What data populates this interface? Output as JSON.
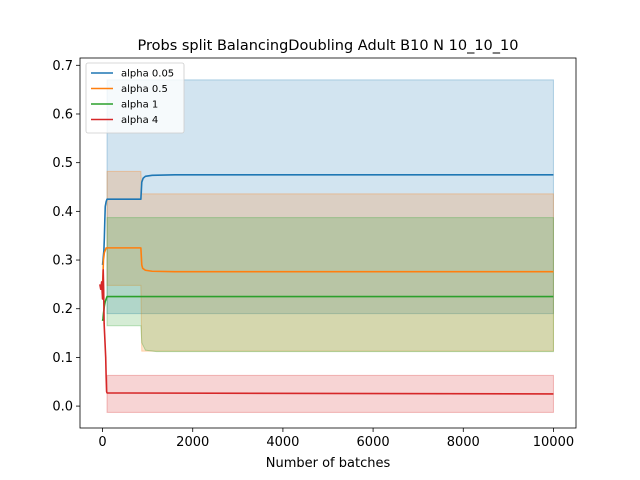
{
  "chart_data": {
    "type": "line",
    "title": "Probs split BalancingDoubling Adult B10 N 10_10_10",
    "xlabel": "Number of batches",
    "ylabel": "",
    "xlim": [
      -500,
      10500
    ],
    "ylim": [
      -0.045,
      0.715
    ],
    "xticks": [
      0,
      2000,
      4000,
      6000,
      8000,
      10000
    ],
    "xtick_labels": [
      "0",
      "2000",
      "4000",
      "6000",
      "8000",
      "10000"
    ],
    "yticks": [
      0.0,
      0.1,
      0.2,
      0.3,
      0.4,
      0.5,
      0.6,
      0.7
    ],
    "ytick_labels": [
      "0.0",
      "0.1",
      "0.2",
      "0.3",
      "0.4",
      "0.5",
      "0.6",
      "0.7"
    ],
    "grid": false,
    "legend_position": "top-left",
    "series": [
      {
        "name": "alpha 0.05",
        "color": "#1f77b4",
        "line": [
          [
            0,
            0.29
          ],
          [
            10,
            0.3
          ],
          [
            20,
            0.31
          ],
          [
            30,
            0.32
          ],
          [
            40,
            0.345
          ],
          [
            50,
            0.38
          ],
          [
            60,
            0.41
          ],
          [
            80,
            0.42
          ],
          [
            100,
            0.425
          ],
          [
            850,
            0.425
          ],
          [
            870,
            0.46
          ],
          [
            900,
            0.468
          ],
          [
            950,
            0.472
          ],
          [
            1100,
            0.474
          ],
          [
            1600,
            0.475
          ],
          [
            10000,
            0.475
          ]
        ],
        "band": [
          [
            100,
            0.19,
            0.67
          ],
          [
            10000,
            0.19,
            0.67
          ]
        ]
      },
      {
        "name": "alpha 0.5",
        "color": "#ff7f0e",
        "line": [
          [
            0,
            0.25
          ],
          [
            10,
            0.27
          ],
          [
            20,
            0.3
          ],
          [
            40,
            0.315
          ],
          [
            60,
            0.32
          ],
          [
            80,
            0.325
          ],
          [
            850,
            0.325
          ],
          [
            870,
            0.29
          ],
          [
            890,
            0.283
          ],
          [
            950,
            0.279
          ],
          [
            1100,
            0.277
          ],
          [
            1600,
            0.276
          ],
          [
            10000,
            0.276
          ]
        ],
        "band": [
          [
            100,
            0.248,
            0.482
          ],
          [
            850,
            0.248,
            0.482
          ],
          [
            870,
            0.113,
            0.436
          ],
          [
            10000,
            0.113,
            0.436
          ]
        ]
      },
      {
        "name": "alpha 1",
        "color": "#2ca02c",
        "line": [
          [
            0,
            0.175
          ],
          [
            10,
            0.18
          ],
          [
            20,
            0.19
          ],
          [
            40,
            0.205
          ],
          [
            60,
            0.215
          ],
          [
            80,
            0.22
          ],
          [
            100,
            0.225
          ],
          [
            10000,
            0.225
          ]
        ],
        "band": [
          [
            100,
            0.165,
            0.387
          ],
          [
            850,
            0.165,
            0.387
          ],
          [
            870,
            0.13,
            0.387
          ],
          [
            950,
            0.115,
            0.387
          ],
          [
            1200,
            0.112,
            0.387
          ],
          [
            10000,
            0.112,
            0.387
          ]
        ]
      },
      {
        "name": "alpha 4",
        "color": "#d62728",
        "line": [
          [
            -60,
            0.25
          ],
          [
            -40,
            0.24
          ],
          [
            -20,
            0.255
          ],
          [
            0,
            0.22
          ],
          [
            15,
            0.28
          ],
          [
            25,
            0.24
          ],
          [
            35,
            0.17
          ],
          [
            45,
            0.15
          ],
          [
            55,
            0.13
          ],
          [
            70,
            0.1
          ],
          [
            80,
            0.06
          ],
          [
            90,
            0.03
          ],
          [
            100,
            0.027
          ],
          [
            10000,
            0.025
          ]
        ],
        "band": [
          [
            100,
            -0.013,
            0.063
          ],
          [
            10000,
            -0.013,
            0.063
          ]
        ]
      }
    ]
  },
  "styles": {
    "axes_color": "#000000",
    "band_opacity": 0.2
  }
}
